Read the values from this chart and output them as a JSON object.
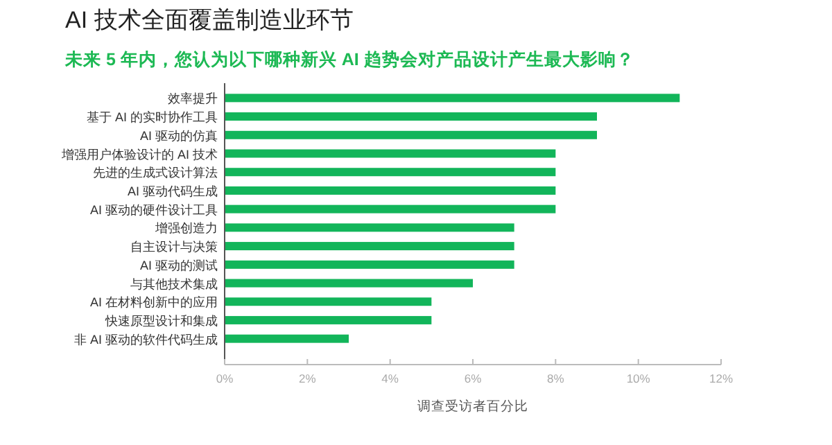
{
  "chart_data": {
    "type": "bar",
    "orientation": "horizontal",
    "title": "AI 技术全面覆盖制造业环节",
    "subtitle": "未来 5 年内，您认为以下哪种新兴 AI 趋势会对产品设计产生最大影响？",
    "xlabel": "调查受访者百分比",
    "categories": [
      "效率提升",
      "基于 AI 的实时协作工具",
      "AI 驱动的仿真",
      "增强用户体验设计的 AI 技术",
      "先进的生成式设计算法",
      "AI 驱动代码生成",
      "AI 驱动的硬件设计工具",
      "增强创造力",
      "自主设计与决策",
      "AI 驱动的测试",
      "与其他技术集成",
      "AI 在材料创新中的应用",
      "快速原型设计和集成",
      "非 AI 驱动的软件代码生成"
    ],
    "values": [
      11,
      9,
      9,
      8,
      8,
      8,
      8,
      7,
      7,
      7,
      6,
      5,
      5,
      3
    ],
    "color": "#12b55a",
    "xlim": [
      0,
      12
    ],
    "xticks": [
      {
        "value": 0,
        "label": "0%"
      },
      {
        "value": 2,
        "label": "2%"
      },
      {
        "value": 4,
        "label": "4%"
      },
      {
        "value": 6,
        "label": "6%"
      },
      {
        "value": 8,
        "label": "8%"
      },
      {
        "value": 10,
        "label": "10%"
      },
      {
        "value": 12,
        "label": "12%"
      }
    ]
  }
}
